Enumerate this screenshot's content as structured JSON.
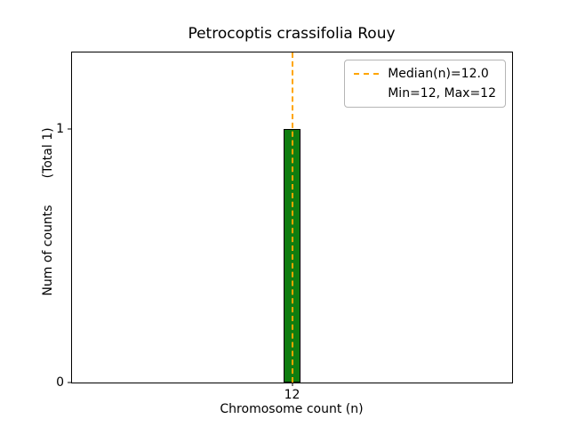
{
  "chart_data": {
    "type": "bar",
    "title": "Petrocoptis crassifolia Rouy",
    "xlabel": "Chromosome count (n)",
    "ylabel": "Num of counts",
    "ylabel_suffix": "(Total 1)",
    "x": [
      12
    ],
    "values": [
      1
    ],
    "bar_width": 0.4,
    "xlim": [
      7,
      17
    ],
    "ylim": [
      0,
      1.3
    ],
    "xticks": [
      12
    ],
    "yticks": [
      0,
      1
    ],
    "median": 12.0,
    "min": 12,
    "max": 12,
    "grid": false,
    "legend_position": "upper-right",
    "colors": {
      "bar_fill": "#0f7d0f",
      "bar_edge": "#000000",
      "median_line": "#ffa500"
    }
  },
  "legend": {
    "items": [
      {
        "label": "Median(n)=12.0",
        "swatch": "dashed-orange-line"
      },
      {
        "label": "Min=12, Max=12",
        "swatch": "none"
      }
    ]
  }
}
